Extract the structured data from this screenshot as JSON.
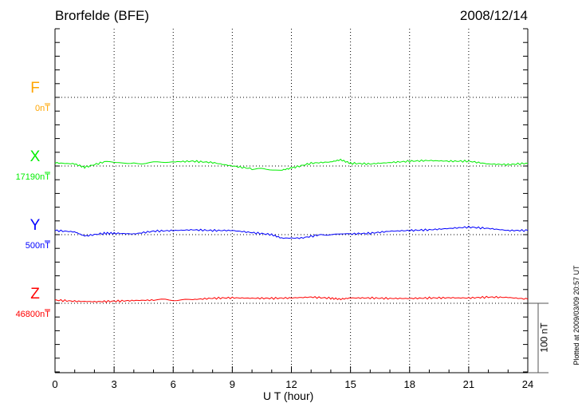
{
  "chart_data": {
    "type": "line",
    "title": "Brorfelde (BFE)",
    "date": "2008/12/14",
    "xlabel": "U T (hour)",
    "xlim": [
      0,
      24
    ],
    "xticks": [
      "0",
      "3",
      "6",
      "9",
      "12",
      "15",
      "18",
      "21",
      "24"
    ],
    "grid": true,
    "scale_bar": "100 nT",
    "footer": "Plotted at 2009/03/09 20:57 UT",
    "series": [
      {
        "name": "F",
        "baseline": "0nT",
        "color": "#ffa500",
        "x": [],
        "values": []
      },
      {
        "name": "X",
        "baseline": "17190nT",
        "color": "#00ee00",
        "x": [
          0,
          1,
          1.5,
          2.5,
          4,
          6,
          7,
          8,
          9,
          10,
          11.5,
          12,
          13,
          14,
          14.5,
          15,
          16,
          17,
          18,
          19,
          20,
          21,
          22,
          23,
          24
        ],
        "values": [
          4.6,
          3,
          -2,
          6,
          4,
          6,
          7,
          5,
          0,
          -4,
          -6,
          -3,
          4,
          6,
          9,
          4,
          3,
          5,
          7,
          8,
          7,
          7,
          3,
          2,
          4
        ]
      },
      {
        "name": "Y",
        "baseline": "500nT",
        "color": "#0000ff",
        "x": [
          0,
          1,
          1.5,
          2.5,
          3,
          4,
          5,
          6,
          7,
          8,
          9,
          10,
          11,
          11.5,
          12.5,
          13.5,
          15,
          16,
          17,
          18,
          19,
          20,
          21,
          22,
          23,
          24
        ],
        "values": [
          6,
          4,
          -2,
          2,
          2,
          1,
          5,
          6,
          7,
          6,
          6,
          3,
          0,
          -5,
          -5,
          0,
          1,
          2,
          5,
          6,
          7,
          9,
          11,
          9,
          6,
          6
        ]
      },
      {
        "name": "Z",
        "baseline": "46800nT",
        "color": "#ff0000",
        "x": [
          0,
          1,
          2,
          3,
          4,
          5,
          7,
          8,
          9,
          10,
          11,
          12,
          13,
          14,
          14.5,
          15,
          16,
          17,
          18,
          19,
          20,
          21,
          22,
          23,
          24
        ],
        "values": [
          4.6,
          3,
          2.3,
          3,
          4,
          4.6,
          5.4,
          7.3,
          8,
          7.3,
          7.3,
          7.7,
          9,
          7.3,
          6,
          7.7,
          7.7,
          7,
          7,
          7.7,
          8,
          7.7,
          9,
          8.5,
          6
        ]
      }
    ]
  }
}
